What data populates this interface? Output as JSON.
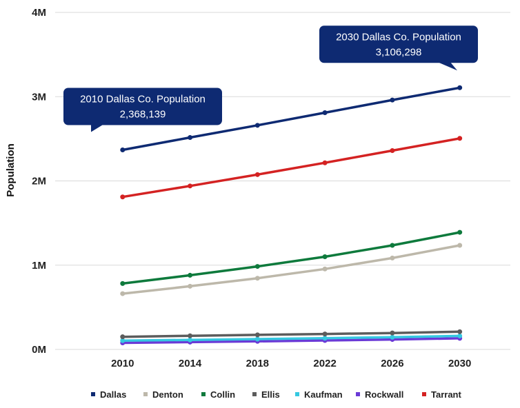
{
  "chart_data": {
    "type": "line",
    "title": "",
    "xlabel": "",
    "ylabel": "Population",
    "x": [
      2010,
      2014,
      2018,
      2022,
      2026,
      2030
    ],
    "xlim": [
      2006,
      2033
    ],
    "ylim": [
      0,
      4000000
    ],
    "yticks": [
      {
        "value": 0,
        "label": "0M"
      },
      {
        "value": 1000000,
        "label": "1M"
      },
      {
        "value": 2000000,
        "label": "2M"
      },
      {
        "value": 3000000,
        "label": "3M"
      },
      {
        "value": 4000000,
        "label": "4M"
      }
    ],
    "xtick_labels": [
      "2010",
      "2014",
      "2018",
      "2022",
      "2026",
      "2030"
    ],
    "grid": "horizontal",
    "legend_position": "bottom",
    "series": [
      {
        "name": "Dallas",
        "color": "#0e2a72",
        "values": [
          2368139,
          2515000,
          2660000,
          2810000,
          2960000,
          3106298
        ]
      },
      {
        "name": "Denton",
        "color": "#bdb8aa",
        "values": [
          662000,
          750000,
          845000,
          955000,
          1085000,
          1235000
        ]
      },
      {
        "name": "Collin",
        "color": "#0e7a3c",
        "values": [
          782000,
          880000,
          985000,
          1100000,
          1235000,
          1390000
        ]
      },
      {
        "name": "Ellis",
        "color": "#5c5c5c",
        "values": [
          150000,
          162000,
          173000,
          183000,
          195000,
          210000
        ]
      },
      {
        "name": "Kaufman",
        "color": "#35c8e0",
        "values": [
          104000,
          113000,
          123000,
          133000,
          145000,
          160000
        ]
      },
      {
        "name": "Rockwall",
        "color": "#6a3ad6",
        "values": [
          78000,
          87000,
          96000,
          106000,
          118000,
          132000
        ]
      },
      {
        "name": "Tarrant",
        "color": "#d42222",
        "values": [
          1810000,
          1940000,
          2075000,
          2215000,
          2360000,
          2505000
        ]
      }
    ],
    "annotations": [
      {
        "series": "Dallas",
        "x": 2010,
        "line1": "2010 Dallas Co. Population",
        "line2": "2,368,139",
        "color": "#0e2a72",
        "side": "left"
      },
      {
        "series": "Dallas",
        "x": 2030,
        "line1": "2030 Dallas Co. Population",
        "line2": "3,106,298",
        "color": "#0e2a72",
        "side": "right"
      }
    ]
  }
}
